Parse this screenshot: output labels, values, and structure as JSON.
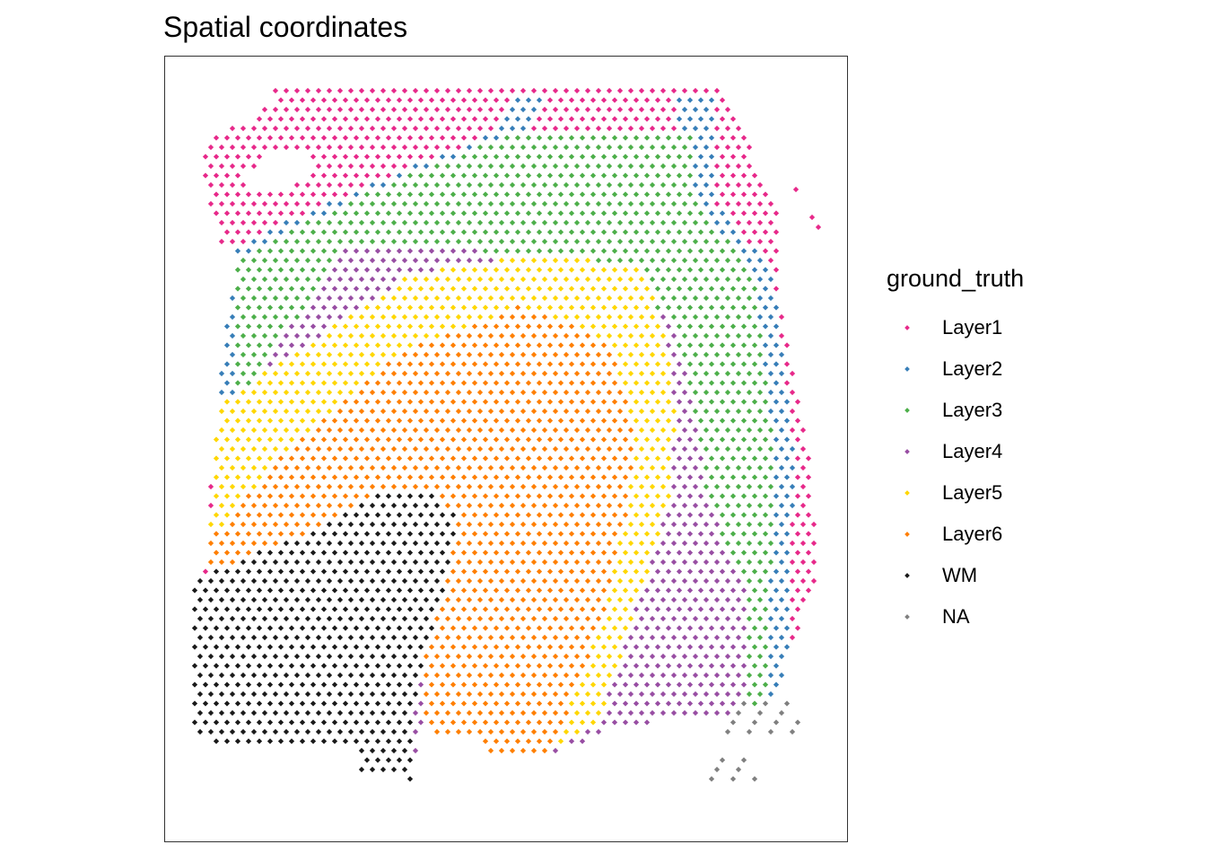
{
  "chart_data": {
    "type": "scatter",
    "title": "Spatial coordinates",
    "xlabel": "",
    "ylabel": "",
    "grid": false,
    "axes_shown": false,
    "legend_position": "right",
    "legend": {
      "title": "ground_truth",
      "entries": [
        {
          "label": "Layer1",
          "color": "#E7298A"
        },
        {
          "label": "Layer2",
          "color": "#377EB8"
        },
        {
          "label": "Layer3",
          "color": "#4DAF4A"
        },
        {
          "label": "Layer4",
          "color": "#984EA3"
        },
        {
          "label": "Layer5",
          "color": "#FFD700"
        },
        {
          "label": "Layer6",
          "color": "#FF7F00"
        },
        {
          "label": "WM",
          "color": "#1A1A1A"
        },
        {
          "label": "NA",
          "color": "#808080"
        }
      ]
    }
  }
}
